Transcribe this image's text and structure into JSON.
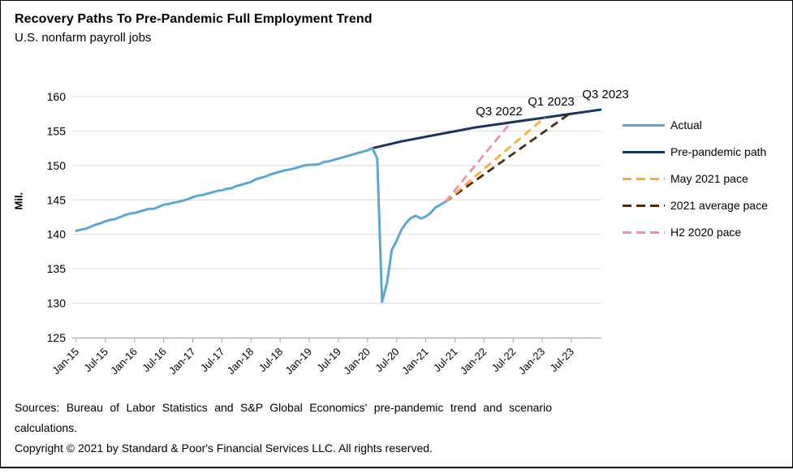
{
  "header": {
    "title": "Recovery Paths To Pre-Pandemic Full Employment Trend",
    "subtitle": "U.S. nonfarm payroll jobs"
  },
  "chart_data": {
    "type": "line",
    "title": "Recovery Paths To Pre-Pandemic Full Employment Trend",
    "subtitle": "U.S. nonfarm payroll jobs",
    "ylabel": "Mil.",
    "ylim": [
      125,
      160
    ],
    "yticks": [
      125,
      130,
      135,
      140,
      145,
      150,
      155,
      160
    ],
    "x_unit": "months since Jan-2015",
    "xticklabels": [
      "Jan-15",
      "Jul-15",
      "Jan-16",
      "Jul-16",
      "Jan-17",
      "Jul-17",
      "Jan-18",
      "Jul-18",
      "Jan-19",
      "Jul-19",
      "Jan-20",
      "Jul-20",
      "Jan-21",
      "Jul-21",
      "Jan-22",
      "Jul-22",
      "Jan-23",
      "Jul-23"
    ],
    "grid": "horizontal",
    "legend_position": "right",
    "colors": {
      "grid": "#D9D9D9",
      "axis": "#A6A6A6"
    },
    "series": [
      {
        "name": "Actual",
        "color": "#5FA6CE",
        "style": "solid",
        "start_month": 0,
        "values": [
          140.5,
          140.7,
          140.8,
          141.1,
          141.4,
          141.6,
          141.9,
          142.1,
          142.2,
          142.5,
          142.8,
          143.0,
          143.1,
          143.3,
          143.5,
          143.7,
          143.7,
          144.0,
          144.3,
          144.4,
          144.6,
          144.7,
          144.9,
          145.1,
          145.4,
          145.6,
          145.7,
          145.9,
          146.1,
          146.3,
          146.4,
          146.6,
          146.7,
          147.0,
          147.2,
          147.4,
          147.6,
          148.0,
          148.2,
          148.4,
          148.7,
          148.9,
          149.1,
          149.3,
          149.4,
          149.6,
          149.8,
          150.0,
          150.1,
          150.1,
          150.2,
          150.5,
          150.6,
          150.8,
          151.0,
          151.2,
          151.4,
          151.6,
          151.8,
          152.0,
          152.2,
          152.5,
          151.0,
          130.2,
          132.9,
          137.7,
          139.1,
          140.7,
          141.7,
          142.4,
          142.7,
          142.3,
          142.6,
          143.1,
          143.9,
          144.3,
          144.7
        ]
      },
      {
        "name": "Pre-pandemic path",
        "color": "#16365C",
        "style": "solid",
        "months": [
          61,
          64,
          67,
          70,
          73,
          76,
          79,
          82,
          85,
          88,
          91,
          94,
          97,
          100,
          103,
          106,
          108
        ],
        "values": [
          152.5,
          153.0,
          153.5,
          153.9,
          154.3,
          154.7,
          155.1,
          155.5,
          155.8,
          156.1,
          156.4,
          156.7,
          157.0,
          157.3,
          157.6,
          157.9,
          158.1
        ]
      },
      {
        "name": "May 2021 pace",
        "color": "#FAAE33",
        "style": "dashed",
        "from": [
          76,
          144.7
        ],
        "to": [
          96.5,
          156.95
        ],
        "reaches_trend": "Q1 2023"
      },
      {
        "name": "2021 average pace",
        "color": "#4E2B10",
        "style": "dashed",
        "from": [
          76,
          144.7
        ],
        "to": [
          101.5,
          157.45
        ],
        "reaches_trend": "Q3 2023"
      },
      {
        "name": "H2 2020 pace",
        "color": "#E891B5",
        "style": "dashed",
        "from": [
          76,
          144.7
        ],
        "to": [
          89.5,
          156.25
        ],
        "reaches_trend": "Q3 2022"
      }
    ],
    "annotations": [
      {
        "text": "Q3 2022",
        "x": 614,
        "y": 141
      },
      {
        "text": "Q1 2023",
        "x": 678,
        "y": 129
      },
      {
        "text": "Q3 2023",
        "x": 745,
        "y": 120
      }
    ]
  },
  "footer": {
    "sources": "Sources: Bureau of Labor Statistics and S&P Global Economics' pre-pandemic trend and scenario calculations.",
    "copyright": "Copyright © 2021 by Standard & Poor's Financial Services LLC. All rights reserved."
  }
}
